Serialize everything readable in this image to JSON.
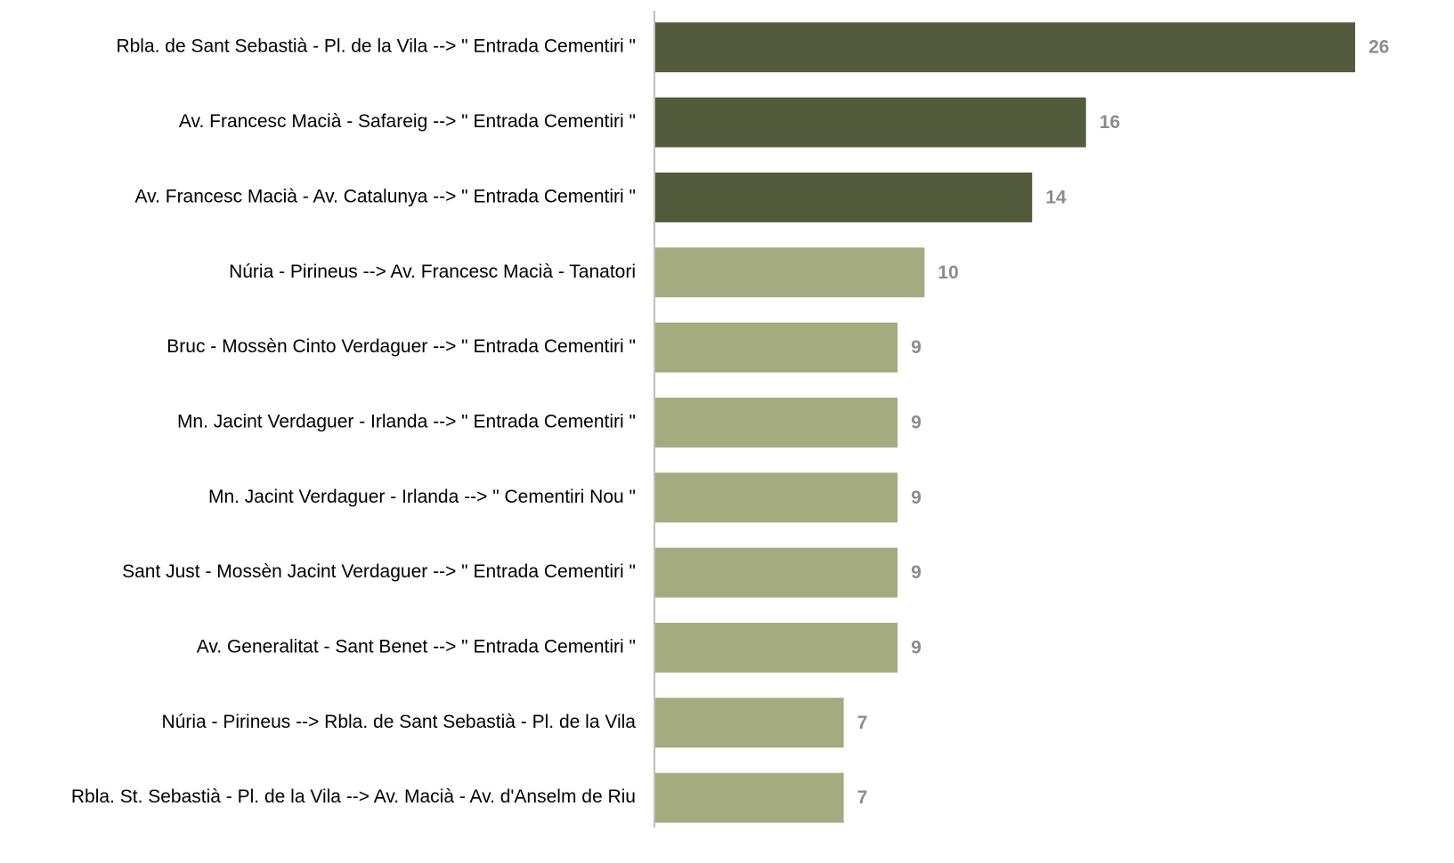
{
  "chart_data": {
    "type": "bar",
    "orientation": "horizontal",
    "categories": [
      "Rbla. de Sant Sebastià - Pl. de la Vila --> \" Entrada Cementiri \"",
      "Av. Francesc Macià - Safareig --> \" Entrada Cementiri \"",
      "Av. Francesc Macià - Av. Catalunya --> \" Entrada Cementiri \"",
      "Núria - Pirineus --> Av. Francesc Macià - Tanatori",
      "Bruc - Mossèn Cinto Verdaguer --> \" Entrada Cementiri \"",
      "Mn. Jacint Verdaguer - Irlanda --> \" Entrada Cementiri \"",
      "Mn. Jacint Verdaguer - Irlanda --> \" Cementiri Nou \"",
      "Sant Just - Mossèn Jacint Verdaguer --> \" Entrada Cementiri \"",
      "Av. Generalitat - Sant Benet --> \" Entrada Cementiri \"",
      "Núria - Pirineus --> Rbla. de Sant Sebastià - Pl. de la Vila",
      "Rbla. St. Sebastià - Pl. de la Vila --> Av. Macià - Av. d'Anselm de Riu"
    ],
    "values": [
      26,
      16,
      14,
      10,
      9,
      9,
      9,
      9,
      9,
      7,
      7
    ],
    "colors": [
      "#545b3c",
      "#545b3c",
      "#545b3c",
      "#a3ab7f",
      "#a3ab7f",
      "#a3ab7f",
      "#a3ab7f",
      "#a3ab7f",
      "#a3ab7f",
      "#a3ab7f",
      "#a3ab7f"
    ]
  }
}
